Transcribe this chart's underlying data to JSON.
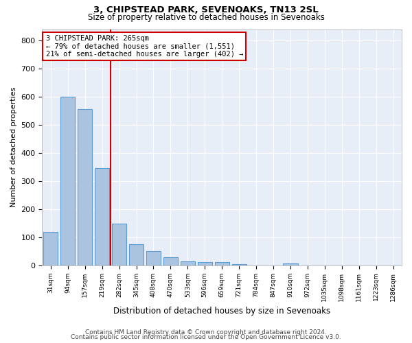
{
  "title1": "3, CHIPSTEAD PARK, SEVENOAKS, TN13 2SL",
  "title2": "Size of property relative to detached houses in Sevenoaks",
  "xlabel": "Distribution of detached houses by size in Sevenoaks",
  "ylabel": "Number of detached properties",
  "categories": [
    "31sqm",
    "94sqm",
    "157sqm",
    "219sqm",
    "282sqm",
    "345sqm",
    "408sqm",
    "470sqm",
    "533sqm",
    "596sqm",
    "659sqm",
    "721sqm",
    "784sqm",
    "847sqm",
    "910sqm",
    "972sqm",
    "1035sqm",
    "1098sqm",
    "1161sqm",
    "1223sqm",
    "1286sqm"
  ],
  "values": [
    120,
    600,
    555,
    347,
    148,
    75,
    50,
    30,
    13,
    12,
    12,
    5,
    0,
    0,
    8,
    0,
    0,
    0,
    0,
    0,
    0
  ],
  "bar_color": "#aac4e0",
  "bar_edge_color": "#5b9bd5",
  "vline_index": 3.5,
  "annotation_line1": "3 CHIPSTEAD PARK: 265sqm",
  "annotation_line2": "← 79% of detached houses are smaller (1,551)",
  "annotation_line3": "21% of semi-detached houses are larger (402) →",
  "vline_color": "#cc0000",
  "box_edge_color": "#cc0000",
  "background_color": "#e8eef8",
  "grid_color": "#ffffff",
  "ylim": [
    0,
    840
  ],
  "yticks": [
    0,
    100,
    200,
    300,
    400,
    500,
    600,
    700,
    800
  ],
  "footer1": "Contains HM Land Registry data © Crown copyright and database right 2024.",
  "footer2": "Contains public sector information licensed under the Open Government Licence v3.0."
}
